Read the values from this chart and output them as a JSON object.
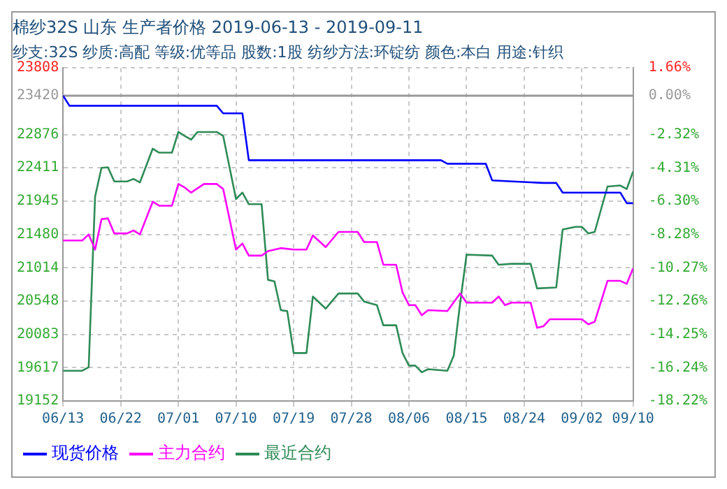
{
  "chart_data": {
    "type": "line",
    "title": "棉纱32S 山东 生产者价格 2019-06-13 - 2019-09-11",
    "subtitle": "纱支:32S 纱质:高配 等级:优等品 股数:1股 纺纱方法:环锭纺 颜色:本白 用途:针织",
    "xlim": [
      "--06-13",
      "--09-10"
    ],
    "xticks": [
      {
        "value": "--06-13",
        "label": "06/13"
      },
      {
        "value": "--06-22",
        "label": "06/22"
      },
      {
        "value": "--07-01",
        "label": "07/01"
      },
      {
        "value": "--07-10",
        "label": "07/10"
      },
      {
        "value": "--07-19",
        "label": "07/19"
      },
      {
        "value": "--07-28",
        "label": "07/28"
      },
      {
        "value": "--08-06",
        "label": "08/06"
      },
      {
        "value": "--08-15",
        "label": "08/15"
      },
      {
        "value": "--08-24",
        "label": "08/24"
      },
      {
        "value": "--09-02",
        "label": "09/02"
      },
      {
        "value": "--09-10",
        "label": "09/10"
      }
    ],
    "ylim": [
      19152,
      23808
    ],
    "yticks": [
      19152,
      19617,
      20083,
      20548,
      21014,
      21480,
      21945,
      22411,
      22876,
      23420,
      23808
    ],
    "y2lim": [
      -18.22,
      1.66
    ],
    "y2ticks": [
      {
        "value": -18.22,
        "label": "-18.22%"
      },
      {
        "value": -16.24,
        "label": "-16.24%"
      },
      {
        "value": -14.25,
        "label": "-14.25%"
      },
      {
        "value": -12.26,
        "label": "-12.26%"
      },
      {
        "value": -10.27,
        "label": "-10.27%"
      },
      {
        "value": -8.28,
        "label": "-8.28%"
      },
      {
        "value": -6.3,
        "label": "-6.30%"
      },
      {
        "value": -4.31,
        "label": "-4.31%"
      },
      {
        "value": -2.32,
        "label": "-2.32%"
      },
      {
        "value": 0,
        "label": "0.00%"
      },
      {
        "value": 1.66,
        "label": "1.66%"
      }
    ],
    "ref_lines": [
      {
        "axis": "y2",
        "value": 0,
        "color": "#999999"
      }
    ],
    "grid": true,
    "legend": "bottom",
    "series": [
      {
        "name": "现货价格",
        "color": "#0000ff",
        "x": [
          "--06-13",
          "--06-14",
          "--07-07",
          "--07-08",
          "--07-11",
          "--07-12",
          "--08-11",
          "--08-12",
          "--08-18",
          "--08-19",
          "--08-27",
          "--08-29",
          "--08-30",
          "--09-08",
          "--09-09",
          "--09-10"
        ],
        "values": [
          23420,
          23279,
          23279,
          23173,
          23173,
          22517,
          22517,
          22468,
          22468,
          22235,
          22200,
          22200,
          22065,
          22065,
          21917,
          21917
        ]
      },
      {
        "name": "主力合约",
        "color": "#ff00ff",
        "x": [
          "--06-13",
          "--06-16",
          "--06-17",
          "--06-18",
          "--06-19",
          "--06-20",
          "--06-21",
          "--06-23",
          "--06-24",
          "--06-25",
          "--06-27",
          "--06-28",
          "--06-30",
          "--07-01",
          "--07-02",
          "--07-03",
          "--07-05",
          "--07-07",
          "--07-08",
          "--07-10",
          "--07-11",
          "--07-12",
          "--07-14",
          "--07-15",
          "--07-17",
          "--07-19",
          "--07-21",
          "--07-22",
          "--07-24",
          "--07-26",
          "--07-29",
          "--07-30",
          "--08-01",
          "--08-02",
          "--08-04",
          "--08-05",
          "--08-06",
          "--08-07",
          "--08-08",
          "--08-09",
          "--08-12",
          "--08-14",
          "--08-15",
          "--08-19",
          "--08-20",
          "--08-21",
          "--08-22",
          "--08-25",
          "--08-26",
          "--08-27",
          "--08-28",
          "--09-02",
          "--09-03",
          "--09-04",
          "--09-06",
          "--09-08",
          "--09-09",
          "--09-10"
        ],
        "values": [
          21395,
          21395,
          21480,
          21268,
          21692,
          21706,
          21494,
          21494,
          21536,
          21480,
          21938,
          21882,
          21882,
          22185,
          22136,
          22065,
          22185,
          22185,
          22115,
          21268,
          21353,
          21184,
          21184,
          21247,
          21289,
          21268,
          21268,
          21466,
          21303,
          21515,
          21515,
          21374,
          21374,
          21056,
          21056,
          20669,
          20492,
          20492,
          20351,
          20422,
          20410,
          20655,
          20527,
          20527,
          20612,
          20492,
          20527,
          20527,
          20175,
          20196,
          20295,
          20295,
          20224,
          20259,
          20831,
          20831,
          20789,
          21007
        ]
      },
      {
        "name": "最近合约",
        "color": "#2e8b57",
        "x": [
          "--06-13",
          "--06-16",
          "--06-17",
          "--06-18",
          "--06-19",
          "--06-20",
          "--06-21",
          "--06-23",
          "--06-24",
          "--06-25",
          "--06-27",
          "--06-28",
          "--06-30",
          "--07-01",
          "--07-02",
          "--07-03",
          "--07-04",
          "--07-07",
          "--07-08",
          "--07-10",
          "--07-11",
          "--07-12",
          "--07-14",
          "--07-15",
          "--07-16",
          "--07-17",
          "--07-18",
          "--07-19",
          "--07-21",
          "--07-22",
          "--07-24",
          "--07-26",
          "--07-29",
          "--07-30",
          "--08-01",
          "--08-02",
          "--08-04",
          "--08-05",
          "--08-06",
          "--08-07",
          "--08-08",
          "--08-09",
          "--08-12",
          "--08-13",
          "--08-14",
          "--08-15",
          "--08-19",
          "--08-20",
          "--08-22",
          "--08-25",
          "--08-26",
          "--08-29",
          "--08-30",
          "--09-01",
          "--09-02",
          "--09-03",
          "--09-04",
          "--09-06",
          "--09-08",
          "--09-09",
          "--09-10"
        ],
        "values": [
          19575,
          19575,
          19624,
          22009,
          22411,
          22418,
          22221,
          22221,
          22256,
          22207,
          22679,
          22623,
          22623,
          22912,
          22856,
          22806,
          22912,
          22912,
          22856,
          21974,
          22065,
          21903,
          21903,
          20845,
          20825,
          20422,
          20408,
          19822,
          19822,
          20612,
          20443,
          20655,
          20655,
          20542,
          20492,
          20210,
          20210,
          19822,
          19646,
          19646,
          19554,
          19596,
          19575,
          19787,
          20527,
          21198,
          21184,
          21056,
          21070,
          21070,
          20725,
          20739,
          21550,
          21586,
          21586,
          21494,
          21515,
          22150,
          22164,
          22115,
          22362
        ]
      }
    ]
  }
}
